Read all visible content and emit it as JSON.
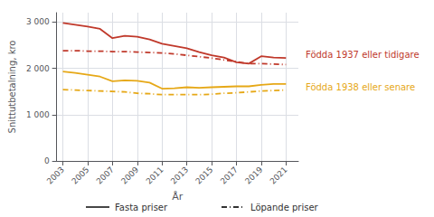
{
  "chart_data": {
    "type": "line",
    "xlabel": "År",
    "ylabel": "Snittutbetalning, kro",
    "x": [
      2003,
      2004,
      2005,
      2006,
      2007,
      2008,
      2009,
      2010,
      2011,
      2012,
      2013,
      2014,
      2015,
      2016,
      2017,
      2018,
      2019,
      2020,
      2021
    ],
    "series": [
      {
        "color": "#c0392b",
        "line_style": "solid",
        "values": [
          2980,
          2940,
          2900,
          2850,
          2650,
          2700,
          2680,
          2620,
          2530,
          2480,
          2430,
          2350,
          2280,
          2230,
          2130,
          2100,
          2260,
          2230,
          2220
        ]
      },
      {
        "color": "#c0392b",
        "line_style": "dashdot",
        "values": [
          2380,
          2380,
          2370,
          2370,
          2360,
          2360,
          2350,
          2340,
          2330,
          2310,
          2280,
          2250,
          2220,
          2180,
          2140,
          2100,
          2100,
          2090,
          2080
        ]
      },
      {
        "color": "#e6a817",
        "line_style": "solid",
        "values": [
          1930,
          1900,
          1860,
          1820,
          1720,
          1740,
          1730,
          1690,
          1560,
          1570,
          1590,
          1580,
          1590,
          1600,
          1610,
          1610,
          1640,
          1660,
          1660
        ]
      },
      {
        "color": "#e6a817",
        "line_style": "dashdot",
        "values": [
          1540,
          1530,
          1520,
          1510,
          1500,
          1490,
          1460,
          1450,
          1430,
          1430,
          1430,
          1430,
          1440,
          1460,
          1470,
          1490,
          1510,
          1520,
          1530
        ]
      }
    ],
    "xlim": [
      2002.5,
      2022
    ],
    "xticks": [
      2003,
      2005,
      2007,
      2009,
      2011,
      2013,
      2015,
      2017,
      2019,
      2021
    ],
    "ylim": [
      0,
      3200
    ],
    "yticks": [
      0,
      {
        "value": 1000,
        "label": "1 000"
      },
      {
        "value": 2000,
        "label": "2 000"
      },
      {
        "value": 3000,
        "label": "3 000"
      }
    ],
    "grid": true,
    "annotations": [
      {
        "text": "Födda 1937 eller tidigare",
        "color": "#c0392b"
      },
      {
        "text": "Födda 1938 eller senare",
        "color": "#e6a817"
      },
      {
        "text": "Fasta priser",
        "line_style": "solid"
      },
      {
        "text": "Löpande priser",
        "line_style": "dashdot"
      }
    ]
  }
}
